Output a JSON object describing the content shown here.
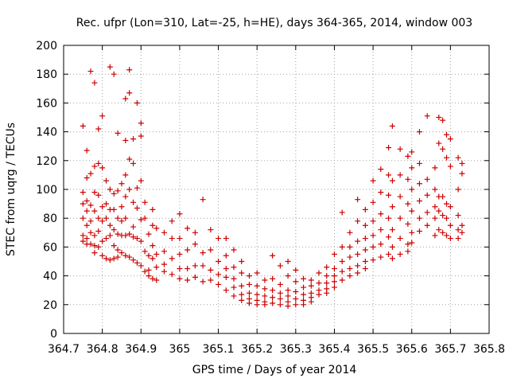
{
  "chart_data": {
    "type": "scatter",
    "title": "Rec. ufpr (Lon=310, Lat=-25, h=HE), days 364-365, 2014, window 003",
    "xlabel": "GPS time / Days of year 2014",
    "ylabel": "STEC from uqrg / TECUs",
    "xlim": [
      364.7,
      365.8
    ],
    "ylim": [
      0,
      200
    ],
    "x_ticks": [
      "364.7",
      "364.8",
      "364.9",
      "365",
      "365.1",
      "365.2",
      "365.3",
      "365.4",
      "365.5",
      "365.6",
      "365.7",
      "365.8"
    ],
    "y_ticks": [
      "0",
      "20",
      "40",
      "60",
      "80",
      "100",
      "120",
      "140",
      "160",
      "180",
      "200"
    ],
    "grid": true,
    "marker": "+",
    "color": "#cc0000",
    "points": [
      [
        364.75,
        144
      ],
      [
        364.75,
        98
      ],
      [
        364.75,
        90
      ],
      [
        364.75,
        80
      ],
      [
        364.75,
        68
      ],
      [
        364.75,
        64
      ],
      [
        364.76,
        127
      ],
      [
        364.76,
        108
      ],
      [
        364.76,
        92
      ],
      [
        364.76,
        85
      ],
      [
        364.76,
        75
      ],
      [
        364.76,
        66
      ],
      [
        364.76,
        62
      ],
      [
        364.77,
        182
      ],
      [
        364.77,
        111
      ],
      [
        364.77,
        89
      ],
      [
        364.77,
        78
      ],
      [
        364.77,
        70
      ],
      [
        364.77,
        62
      ],
      [
        364.78,
        174
      ],
      [
        364.78,
        116
      ],
      [
        364.78,
        98
      ],
      [
        364.78,
        85
      ],
      [
        364.78,
        68
      ],
      [
        364.78,
        61
      ],
      [
        364.78,
        56
      ],
      [
        364.79,
        142
      ],
      [
        364.79,
        118
      ],
      [
        364.79,
        96
      ],
      [
        364.79,
        80
      ],
      [
        364.79,
        71
      ],
      [
        364.79,
        60
      ],
      [
        364.8,
        151
      ],
      [
        364.8,
        115
      ],
      [
        364.8,
        88
      ],
      [
        364.8,
        78
      ],
      [
        364.8,
        64
      ],
      [
        364.8,
        54
      ],
      [
        364.81,
        106
      ],
      [
        364.81,
        90
      ],
      [
        364.81,
        80
      ],
      [
        364.81,
        66
      ],
      [
        364.81,
        52
      ],
      [
        364.82,
        185
      ],
      [
        364.82,
        100
      ],
      [
        364.82,
        86
      ],
      [
        364.82,
        75
      ],
      [
        364.82,
        68
      ],
      [
        364.82,
        51
      ],
      [
        364.83,
        180
      ],
      [
        364.83,
        97
      ],
      [
        364.83,
        86
      ],
      [
        364.83,
        72
      ],
      [
        364.83,
        61
      ],
      [
        364.83,
        52
      ],
      [
        364.84,
        139
      ],
      [
        364.84,
        99
      ],
      [
        364.84,
        80
      ],
      [
        364.84,
        69
      ],
      [
        364.84,
        58
      ],
      [
        364.84,
        53
      ],
      [
        364.85,
        104
      ],
      [
        364.85,
        88
      ],
      [
        364.85,
        78
      ],
      [
        364.85,
        68
      ],
      [
        364.85,
        56
      ],
      [
        364.86,
        163
      ],
      [
        364.86,
        134
      ],
      [
        364.86,
        110
      ],
      [
        364.86,
        95
      ],
      [
        364.86,
        80
      ],
      [
        364.86,
        68
      ],
      [
        364.86,
        54
      ],
      [
        364.87,
        183
      ],
      [
        364.87,
        167
      ],
      [
        364.87,
        121
      ],
      [
        364.87,
        100
      ],
      [
        364.87,
        69
      ],
      [
        364.87,
        53
      ],
      [
        364.88,
        135
      ],
      [
        364.88,
        118
      ],
      [
        364.88,
        91
      ],
      [
        364.88,
        74
      ],
      [
        364.88,
        67
      ],
      [
        364.88,
        51
      ],
      [
        364.89,
        160
      ],
      [
        364.89,
        101
      ],
      [
        364.89,
        87
      ],
      [
        364.89,
        66
      ],
      [
        364.89,
        49
      ],
      [
        364.9,
        146
      ],
      [
        364.9,
        137
      ],
      [
        364.9,
        106
      ],
      [
        364.9,
        79
      ],
      [
        364.9,
        64
      ],
      [
        364.9,
        47
      ],
      [
        364.91,
        91
      ],
      [
        364.91,
        80
      ],
      [
        364.91,
        57
      ],
      [
        364.91,
        43
      ],
      [
        364.92,
        69
      ],
      [
        364.92,
        54
      ],
      [
        364.92,
        44
      ],
      [
        364.92,
        40
      ],
      [
        364.93,
        86
      ],
      [
        364.93,
        75
      ],
      [
        364.93,
        61
      ],
      [
        364.93,
        52
      ],
      [
        364.93,
        38
      ],
      [
        364.94,
        73
      ],
      [
        364.94,
        55
      ],
      [
        364.94,
        46
      ],
      [
        364.94,
        37
      ],
      [
        364.96,
        70
      ],
      [
        364.96,
        57
      ],
      [
        364.96,
        48
      ],
      [
        364.96,
        43
      ],
      [
        364.98,
        78
      ],
      [
        364.98,
        66
      ],
      [
        364.98,
        52
      ],
      [
        364.98,
        41
      ],
      [
        365.0,
        83
      ],
      [
        365.0,
        66
      ],
      [
        365.0,
        55
      ],
      [
        365.0,
        45
      ],
      [
        365.0,
        38
      ],
      [
        365.02,
        73
      ],
      [
        365.02,
        58
      ],
      [
        365.02,
        45
      ],
      [
        365.02,
        37
      ],
      [
        365.04,
        70
      ],
      [
        365.04,
        62
      ],
      [
        365.04,
        47
      ],
      [
        365.04,
        39
      ],
      [
        365.06,
        93
      ],
      [
        365.06,
        56
      ],
      [
        365.06,
        47
      ],
      [
        365.06,
        36
      ],
      [
        365.08,
        72
      ],
      [
        365.08,
        58
      ],
      [
        365.08,
        44
      ],
      [
        365.08,
        37
      ],
      [
        365.1,
        66
      ],
      [
        365.1,
        50
      ],
      [
        365.1,
        41
      ],
      [
        365.1,
        34
      ],
      [
        365.12,
        66
      ],
      [
        365.12,
        54
      ],
      [
        365.12,
        45
      ],
      [
        365.12,
        39
      ],
      [
        365.12,
        30
      ],
      [
        365.14,
        58
      ],
      [
        365.14,
        46
      ],
      [
        365.14,
        38
      ],
      [
        365.14,
        32
      ],
      [
        365.14,
        26
      ],
      [
        365.16,
        50
      ],
      [
        365.16,
        42
      ],
      [
        365.16,
        33
      ],
      [
        365.16,
        27
      ],
      [
        365.16,
        23
      ],
      [
        365.18,
        40
      ],
      [
        365.18,
        34
      ],
      [
        365.18,
        28
      ],
      [
        365.18,
        24
      ],
      [
        365.18,
        21
      ],
      [
        365.2,
        42
      ],
      [
        365.2,
        33
      ],
      [
        365.2,
        27
      ],
      [
        365.2,
        23
      ],
      [
        365.2,
        20
      ],
      [
        365.22,
        37
      ],
      [
        365.22,
        31
      ],
      [
        365.22,
        26
      ],
      [
        365.22,
        22
      ],
      [
        365.22,
        20
      ],
      [
        365.24,
        54
      ],
      [
        365.24,
        38
      ],
      [
        365.24,
        30
      ],
      [
        365.24,
        25
      ],
      [
        365.24,
        21
      ],
      [
        365.26,
        47
      ],
      [
        365.26,
        34
      ],
      [
        365.26,
        28
      ],
      [
        365.26,
        24
      ],
      [
        365.26,
        20
      ],
      [
        365.28,
        50
      ],
      [
        365.28,
        40
      ],
      [
        365.28,
        30
      ],
      [
        365.28,
        26
      ],
      [
        365.28,
        22
      ],
      [
        365.28,
        19
      ],
      [
        365.3,
        44
      ],
      [
        365.3,
        36
      ],
      [
        365.3,
        29
      ],
      [
        365.3,
        24
      ],
      [
        365.3,
        20
      ],
      [
        365.32,
        38
      ],
      [
        365.32,
        32
      ],
      [
        365.32,
        27
      ],
      [
        365.32,
        23
      ],
      [
        365.32,
        20
      ],
      [
        365.34,
        37
      ],
      [
        365.34,
        33
      ],
      [
        365.34,
        28
      ],
      [
        365.34,
        25
      ],
      [
        365.34,
        22
      ],
      [
        365.36,
        42
      ],
      [
        365.36,
        35
      ],
      [
        365.36,
        30
      ],
      [
        365.36,
        27
      ],
      [
        365.38,
        46
      ],
      [
        365.38,
        40
      ],
      [
        365.38,
        35
      ],
      [
        365.38,
        31
      ],
      [
        365.38,
        28
      ],
      [
        365.4,
        55
      ],
      [
        365.4,
        45
      ],
      [
        365.4,
        40
      ],
      [
        365.4,
        36
      ],
      [
        365.4,
        32
      ],
      [
        365.42,
        84
      ],
      [
        365.42,
        60
      ],
      [
        365.42,
        50
      ],
      [
        365.42,
        43
      ],
      [
        365.42,
        37
      ],
      [
        365.44,
        70
      ],
      [
        365.44,
        60
      ],
      [
        365.44,
        53
      ],
      [
        365.44,
        45
      ],
      [
        365.44,
        40
      ],
      [
        365.46,
        93
      ],
      [
        365.46,
        78
      ],
      [
        365.46,
        64
      ],
      [
        365.46,
        55
      ],
      [
        365.46,
        47
      ],
      [
        365.46,
        42
      ],
      [
        365.48,
        86
      ],
      [
        365.48,
        75
      ],
      [
        365.48,
        66
      ],
      [
        365.48,
        58
      ],
      [
        365.48,
        50
      ],
      [
        365.48,
        45
      ],
      [
        365.5,
        106
      ],
      [
        365.5,
        91
      ],
      [
        365.5,
        78
      ],
      [
        365.5,
        68
      ],
      [
        365.5,
        60
      ],
      [
        365.5,
        51
      ],
      [
        365.52,
        114
      ],
      [
        365.52,
        98
      ],
      [
        365.52,
        83
      ],
      [
        365.52,
        72
      ],
      [
        365.52,
        62
      ],
      [
        365.52,
        53
      ],
      [
        365.54,
        129
      ],
      [
        365.54,
        110
      ],
      [
        365.54,
        96
      ],
      [
        365.54,
        80
      ],
      [
        365.54,
        67
      ],
      [
        365.54,
        55
      ],
      [
        365.55,
        144
      ],
      [
        365.55,
        106
      ],
      [
        365.55,
        88
      ],
      [
        365.55,
        72
      ],
      [
        365.55,
        60
      ],
      [
        365.55,
        52
      ],
      [
        365.57,
        128
      ],
      [
        365.57,
        110
      ],
      [
        365.57,
        95
      ],
      [
        365.57,
        80
      ],
      [
        365.57,
        66
      ],
      [
        365.57,
        55
      ],
      [
        365.59,
        123
      ],
      [
        365.59,
        107
      ],
      [
        365.59,
        90
      ],
      [
        365.59,
        76
      ],
      [
        365.59,
        62
      ],
      [
        365.59,
        57
      ],
      [
        365.6,
        126
      ],
      [
        365.6,
        115
      ],
      [
        365.6,
        100
      ],
      [
        365.6,
        85
      ],
      [
        365.6,
        70
      ],
      [
        365.6,
        63
      ],
      [
        365.62,
        140
      ],
      [
        365.62,
        118
      ],
      [
        365.62,
        104
      ],
      [
        365.62,
        92
      ],
      [
        365.62,
        80
      ],
      [
        365.62,
        71
      ],
      [
        365.64,
        151
      ],
      [
        365.64,
        107
      ],
      [
        365.64,
        96
      ],
      [
        365.64,
        84
      ],
      [
        365.64,
        75
      ],
      [
        365.66,
        115
      ],
      [
        365.66,
        100
      ],
      [
        365.66,
        88
      ],
      [
        365.66,
        80
      ],
      [
        365.66,
        68
      ],
      [
        365.67,
        150
      ],
      [
        365.67,
        132
      ],
      [
        365.67,
        95
      ],
      [
        365.67,
        85
      ],
      [
        365.67,
        72
      ],
      [
        365.68,
        148
      ],
      [
        365.68,
        128
      ],
      [
        365.68,
        95
      ],
      [
        365.68,
        82
      ],
      [
        365.68,
        70
      ],
      [
        365.69,
        138
      ],
      [
        365.69,
        122
      ],
      [
        365.69,
        90
      ],
      [
        365.69,
        80
      ],
      [
        365.69,
        68
      ],
      [
        365.7,
        135
      ],
      [
        365.7,
        116
      ],
      [
        365.7,
        88
      ],
      [
        365.7,
        75
      ],
      [
        365.7,
        66
      ],
      [
        365.72,
        122
      ],
      [
        365.72,
        100
      ],
      [
        365.72,
        82
      ],
      [
        365.72,
        72
      ],
      [
        365.72,
        66
      ],
      [
        365.73,
        118
      ],
      [
        365.73,
        111
      ],
      [
        365.73,
        75
      ],
      [
        365.73,
        70
      ]
    ]
  }
}
